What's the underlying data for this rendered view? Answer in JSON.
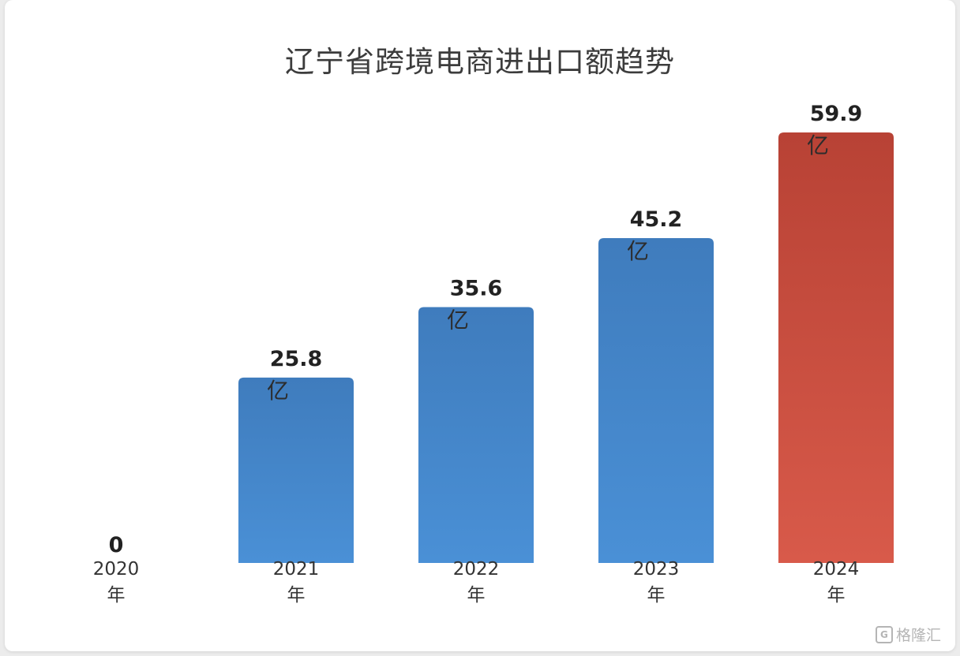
{
  "watermark": {
    "text": "格隆汇",
    "icon": "G"
  },
  "colors": {
    "blue_top": "#3f7cbd",
    "blue_bottom": "#4a90d6",
    "red_top": "#b84235",
    "red_bottom": "#d85a4a"
  },
  "chart_data": {
    "type": "bar",
    "title": "辽宁省跨境电商进出口额趋势",
    "categories": [
      "2020年",
      "2021年",
      "2022年",
      "2023年",
      "2024年"
    ],
    "values": [
      0,
      25.8,
      35.6,
      45.2,
      59.9
    ],
    "value_labels": [
      "0",
      "25.8",
      "35.6",
      "45.2",
      "59.9"
    ],
    "unit_label": "亿",
    "highlight_index": 4,
    "ylim": [
      0,
      59.9
    ],
    "grid": false,
    "legend": "none"
  }
}
